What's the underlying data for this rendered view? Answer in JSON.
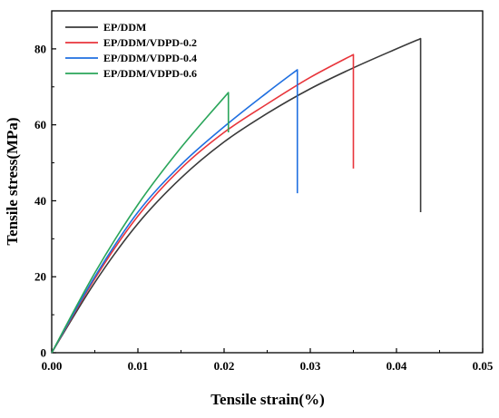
{
  "chart_data": {
    "type": "line",
    "xlabel": "Tensile strain(%)",
    "ylabel": "Tensile stress(MPa)",
    "xlim": [
      0,
      0.05
    ],
    "ylim": [
      0,
      90
    ],
    "xticks": [
      0.0,
      0.01,
      0.02,
      0.03,
      0.04,
      0.05
    ],
    "xtick_labels": [
      "0.00",
      "0.01",
      "0.02",
      "0.03",
      "0.04",
      "0.05"
    ],
    "yticks": [
      0,
      20,
      40,
      60,
      80
    ],
    "ytick_labels": [
      "0",
      "20",
      "40",
      "60",
      "80"
    ],
    "legend_position": "top-left",
    "grid": false,
    "series": [
      {
        "name": "EP/DDM",
        "color": "#3a3a3a",
        "x": [
          0,
          0.005,
          0.01,
          0.015,
          0.02,
          0.025,
          0.03,
          0.035,
          0.04,
          0.0428,
          0.0428
        ],
        "y": [
          0,
          18.5,
          34,
          46,
          55.5,
          63,
          69.5,
          75,
          80,
          82.7,
          37
        ]
      },
      {
        "name": "EP/DDM/VDPD-0.2",
        "color": "#e8353b",
        "x": [
          0,
          0.005,
          0.01,
          0.015,
          0.02,
          0.025,
          0.03,
          0.035,
          0.035
        ],
        "y": [
          0,
          19.5,
          36,
          48.5,
          58,
          65.5,
          72.5,
          78.5,
          48.5
        ]
      },
      {
        "name": "EP/DDM/VDPD-0.4",
        "color": "#1f6fe0",
        "x": [
          0,
          0.005,
          0.01,
          0.015,
          0.02,
          0.025,
          0.0285,
          0.0285
        ],
        "y": [
          0,
          20,
          37,
          49.5,
          59.5,
          68.5,
          74.5,
          42
        ]
      },
      {
        "name": "EP/DDM/VDPD-0.6",
        "color": "#2aa55a",
        "x": [
          0,
          0.005,
          0.01,
          0.015,
          0.0205,
          0.0205
        ],
        "y": [
          0,
          21,
          39,
          54,
          68.5,
          58
        ]
      }
    ]
  }
}
